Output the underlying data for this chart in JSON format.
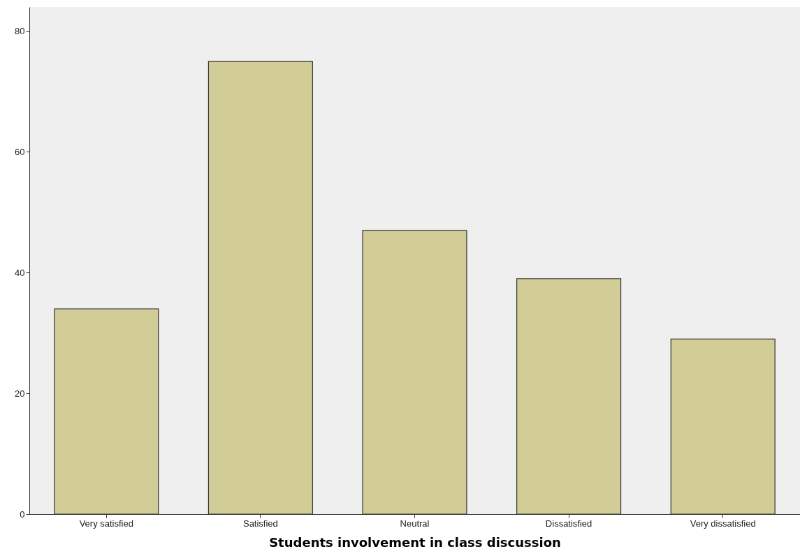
{
  "chart_data": {
    "type": "bar",
    "xlabel": "Students involvement in class discussion",
    "categories": [
      "Very satisfied",
      "Satisfied",
      "Neutral",
      "Dissatisfied",
      "Very dissatisfied"
    ],
    "values": [
      34,
      75,
      47,
      39,
      29
    ],
    "color": "#d2cd96",
    "ylim": [
      0,
      84
    ],
    "yticks": [
      0,
      20,
      40,
      60,
      80
    ],
    "grid": false
  }
}
